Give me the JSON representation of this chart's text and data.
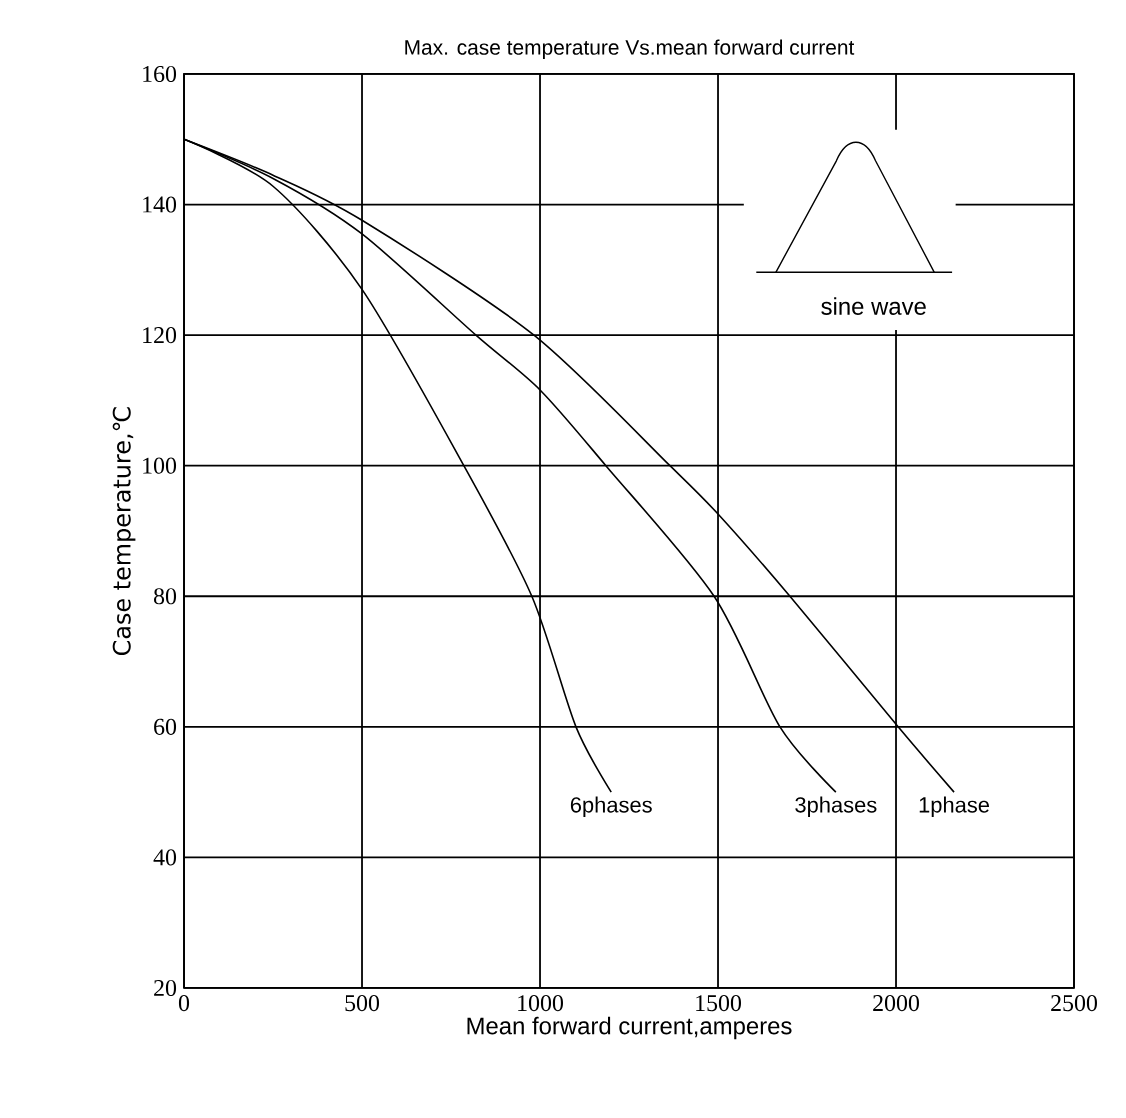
{
  "chart_data": {
    "type": "line",
    "title": "Max. case temperature Vs.mean forward current",
    "xlabel": "Mean forward current,amperes",
    "ylabel": "Case temperature,℃",
    "annotations": [
      "sine wave"
    ],
    "xlim": [
      0,
      2500
    ],
    "ylim": [
      20,
      160
    ],
    "xticks": [
      0,
      500,
      1000,
      1500,
      2000,
      2500
    ],
    "yticks": [
      20,
      40,
      60,
      80,
      100,
      120,
      140,
      160
    ],
    "grid": true,
    "legend": false,
    "marker": "none",
    "line_style": "solid",
    "series": [
      {
        "name": "6phases",
        "color": "#000000",
        "x": [
          0,
          250,
          500,
          786,
          977,
          1101,
          1200
        ],
        "values": [
          150,
          142.8,
          127,
          100,
          80,
          60,
          50
        ]
      },
      {
        "name": "3phases",
        "color": "#000000",
        "x": [
          0,
          250,
          500,
          820,
          1000,
          1185,
          1489,
          1674,
          1831
        ],
        "values": [
          150,
          144,
          135.5,
          120,
          111.6,
          100,
          80,
          60,
          50
        ]
      },
      {
        "name": "1phase",
        "color": "#000000",
        "x": [
          0,
          250,
          500,
          983,
          1365,
          1500,
          1702,
          2006,
          2163
        ],
        "values": [
          150,
          144.5,
          137.6,
          120,
          100,
          92.6,
          80,
          60,
          50
        ]
      }
    ]
  }
}
